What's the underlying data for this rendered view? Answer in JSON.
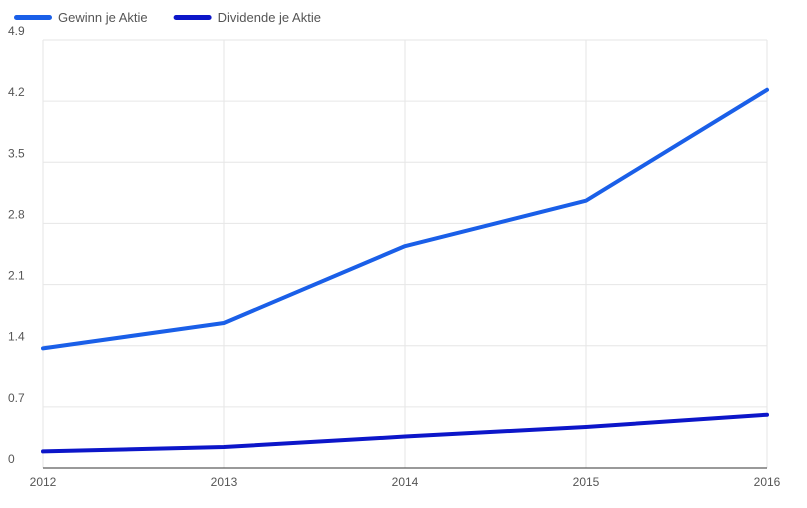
{
  "chart_data": {
    "type": "line",
    "x": [
      "2012",
      "2013",
      "2014",
      "2015",
      "2016"
    ],
    "ylim": [
      0,
      4.9
    ],
    "yticks": [
      "0",
      "0.7",
      "1.4",
      "2.1",
      "2.8",
      "3.5",
      "4.2",
      "4.9"
    ],
    "grid": true,
    "legend_position": "top-left",
    "series": [
      {
        "name": "Gewinn je Aktie",
        "color": "#1a5fe8",
        "values": [
          1.37,
          1.66,
          2.54,
          3.06,
          4.33
        ]
      },
      {
        "name": "Dividende je Aktie",
        "color": "#0c16c9",
        "values": [
          0.19,
          0.24,
          0.36,
          0.47,
          0.61
        ]
      }
    ]
  }
}
